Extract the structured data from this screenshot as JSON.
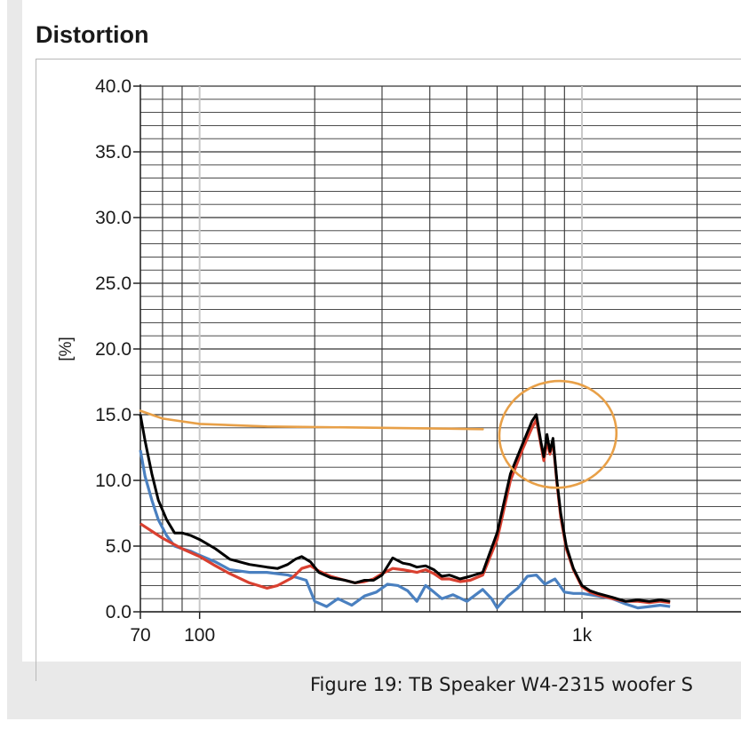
{
  "panel_title": "Distortion",
  "caption": "Figure 19: TB Speaker W4-2315 woofer S",
  "chart_data": {
    "type": "line",
    "title": "Distortion",
    "ylabel": "[%]",
    "xlabel": "",
    "x_scale": "log",
    "xlim": [
      70,
      1700
    ],
    "ylim": [
      0,
      40
    ],
    "yticks": [
      0,
      5,
      10,
      15,
      20,
      25,
      30,
      35,
      40
    ],
    "ytick_labels": [
      "0.0",
      "5.0",
      "10.0",
      "15.0",
      "20.0",
      "25.0",
      "30.0",
      "35.0",
      "40.0"
    ],
    "xticks": [
      70,
      100,
      1000
    ],
    "xtick_labels": [
      "70",
      "100",
      "1k"
    ],
    "grid": true,
    "legend": "none",
    "series": [
      {
        "color": "#000000",
        "x": [
          70,
          72,
          75,
          78,
          82,
          86,
          90,
          95,
          100,
          110,
          120,
          135,
          150,
          160,
          170,
          178,
          185,
          195,
          205,
          220,
          240,
          255,
          270,
          285,
          300,
          320,
          340,
          355,
          370,
          390,
          410,
          430,
          450,
          480,
          510,
          550,
          600,
          650,
          700,
          740,
          760,
          780,
          795,
          810,
          825,
          840,
          860,
          880,
          910,
          950,
          1000,
          1050,
          1100,
          1200,
          1300,
          1400,
          1500,
          1600,
          1700
        ],
        "y": [
          15.0,
          13.0,
          10.5,
          8.5,
          7.0,
          6.0,
          6.0,
          5.8,
          5.5,
          4.8,
          4.0,
          3.6,
          3.4,
          3.3,
          3.6,
          4.0,
          4.2,
          3.8,
          3.0,
          2.6,
          2.4,
          2.2,
          2.4,
          2.4,
          2.8,
          4.1,
          3.7,
          3.6,
          3.4,
          3.5,
          3.2,
          2.7,
          2.8,
          2.5,
          2.7,
          3.0,
          6.0,
          10.5,
          12.8,
          14.5,
          15.0,
          13.0,
          11.8,
          13.5,
          12.2,
          13.2,
          10.0,
          7.5,
          5.0,
          3.3,
          2.0,
          1.6,
          1.4,
          1.1,
          0.8,
          0.9,
          0.8,
          0.9,
          0.8
        ]
      },
      {
        "color": "#d94030",
        "x": [
          70,
          80,
          90,
          100,
          110,
          120,
          135,
          150,
          160,
          175,
          185,
          195,
          205,
          220,
          240,
          255,
          270,
          285,
          300,
          320,
          340,
          355,
          370,
          390,
          410,
          430,
          450,
          480,
          510,
          550,
          600,
          650,
          700,
          740,
          760,
          780,
          795,
          810,
          825,
          840,
          860,
          880,
          910,
          950,
          1000,
          1050,
          1100,
          1200,
          1300,
          1400,
          1500,
          1600,
          1700
        ],
        "y": [
          6.7,
          5.6,
          4.8,
          4.2,
          3.5,
          2.9,
          2.2,
          1.8,
          2.0,
          2.6,
          3.3,
          3.5,
          3.1,
          2.7,
          2.4,
          2.2,
          2.3,
          2.5,
          2.9,
          3.3,
          3.2,
          3.1,
          3.0,
          3.2,
          2.9,
          2.5,
          2.5,
          2.3,
          2.4,
          2.8,
          5.5,
          10.0,
          12.4,
          14.0,
          14.6,
          12.8,
          11.5,
          13.0,
          12.0,
          13.0,
          9.8,
          7.2,
          4.8,
          3.2,
          1.9,
          1.5,
          1.3,
          1.0,
          0.8,
          0.8,
          0.7,
          0.8,
          0.7
        ]
      },
      {
        "color": "#4a80c0",
        "x": [
          70,
          72,
          75,
          78,
          82,
          86,
          90,
          95,
          100,
          110,
          120,
          135,
          150,
          160,
          170,
          180,
          190,
          200,
          215,
          230,
          250,
          270,
          290,
          310,
          330,
          350,
          370,
          390,
          410,
          430,
          460,
          500,
          550,
          580,
          600,
          640,
          680,
          720,
          760,
          800,
          850,
          900,
          950,
          1000,
          1100,
          1200,
          1300,
          1400,
          1500,
          1600,
          1700
        ],
        "y": [
          12.3,
          10.3,
          8.5,
          7.0,
          5.8,
          5.0,
          4.8,
          4.6,
          4.3,
          3.8,
          3.2,
          3.0,
          3.0,
          2.9,
          2.8,
          2.6,
          2.4,
          0.8,
          0.4,
          1.0,
          0.5,
          1.2,
          1.5,
          2.1,
          2.0,
          1.6,
          0.8,
          2.0,
          1.5,
          1.0,
          1.3,
          0.8,
          1.7,
          1.0,
          0.3,
          1.2,
          1.8,
          2.7,
          2.8,
          2.1,
          2.5,
          1.5,
          1.4,
          1.4,
          1.2,
          1.0,
          0.6,
          0.3,
          0.4,
          0.5,
          0.4
        ]
      }
    ],
    "annotations": [
      {
        "type": "hand-drawn-line",
        "color": "#e8a048",
        "x": [
          70,
          80,
          100,
          150,
          300,
          550
        ],
        "y": [
          15.3,
          14.7,
          14.3,
          14.1,
          14.0,
          13.9
        ]
      },
      {
        "type": "hand-drawn-ellipse",
        "color": "#e8a048",
        "cx": 865,
        "cy": 13.5,
        "note": "circle around the distortion peak"
      }
    ]
  }
}
